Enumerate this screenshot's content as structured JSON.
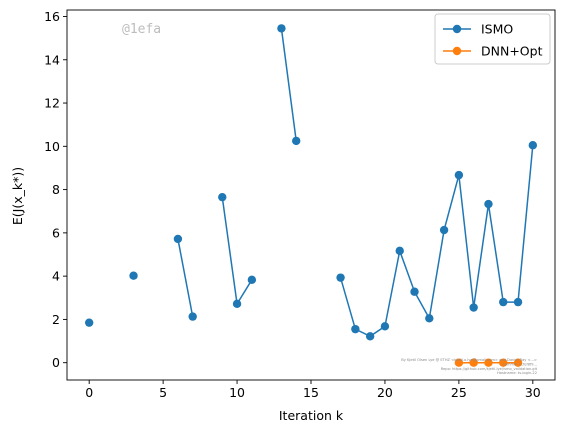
{
  "watermark": "@1efa",
  "chart_data": {
    "type": "line",
    "xlabel": "Iteration k",
    "ylabel": "E(J(x_k*))",
    "xlim": [
      -1.5,
      31.5
    ],
    "ylim": [
      -0.8,
      16.3
    ],
    "xticks": [
      0,
      5,
      10,
      15,
      20,
      25,
      30
    ],
    "yticks": [
      0,
      2,
      4,
      6,
      8,
      10,
      12,
      14,
      16
    ],
    "grid": false,
    "legend_position": "top-right",
    "series": [
      {
        "name": "ISMO",
        "color": "#1f77b4",
        "points": [
          [
            0,
            1.85
          ],
          [
            3,
            4.02
          ],
          [
            6,
            5.72
          ],
          [
            7,
            2.13
          ],
          [
            9,
            7.65
          ],
          [
            10,
            2.72
          ],
          [
            11,
            3.83
          ],
          [
            13,
            15.45
          ],
          [
            14,
            10.25
          ],
          [
            17,
            3.93
          ],
          [
            18,
            1.55
          ],
          [
            19,
            1.22
          ],
          [
            20,
            1.68
          ],
          [
            21,
            5.17
          ],
          [
            22,
            3.28
          ],
          [
            23,
            2.05
          ],
          [
            24,
            6.13
          ],
          [
            25,
            8.67
          ],
          [
            26,
            2.55
          ],
          [
            27,
            7.33
          ],
          [
            28,
            2.8
          ],
          [
            29,
            2.8
          ],
          [
            30,
            10.05
          ]
        ]
      },
      {
        "name": "DNN+Opt",
        "color": "#ff7f0e",
        "points": [
          [
            25,
            0.0
          ],
          [
            26,
            0.0
          ],
          [
            27,
            0.0
          ],
          [
            28,
            0.0
          ],
          [
            29,
            0.0
          ]
        ]
      }
    ]
  },
  "fine_print": [
    "By Kjetil Olsen Lye @ ETHZ <kjetil.o.lye@gmail.com> and Daniel Ray <...>",
    "Commit: 1cfef8f9...",
    "Repo: https://github.com/kjetil-lye/ismo_validation.git",
    "Hostname: ts-login-22"
  ]
}
